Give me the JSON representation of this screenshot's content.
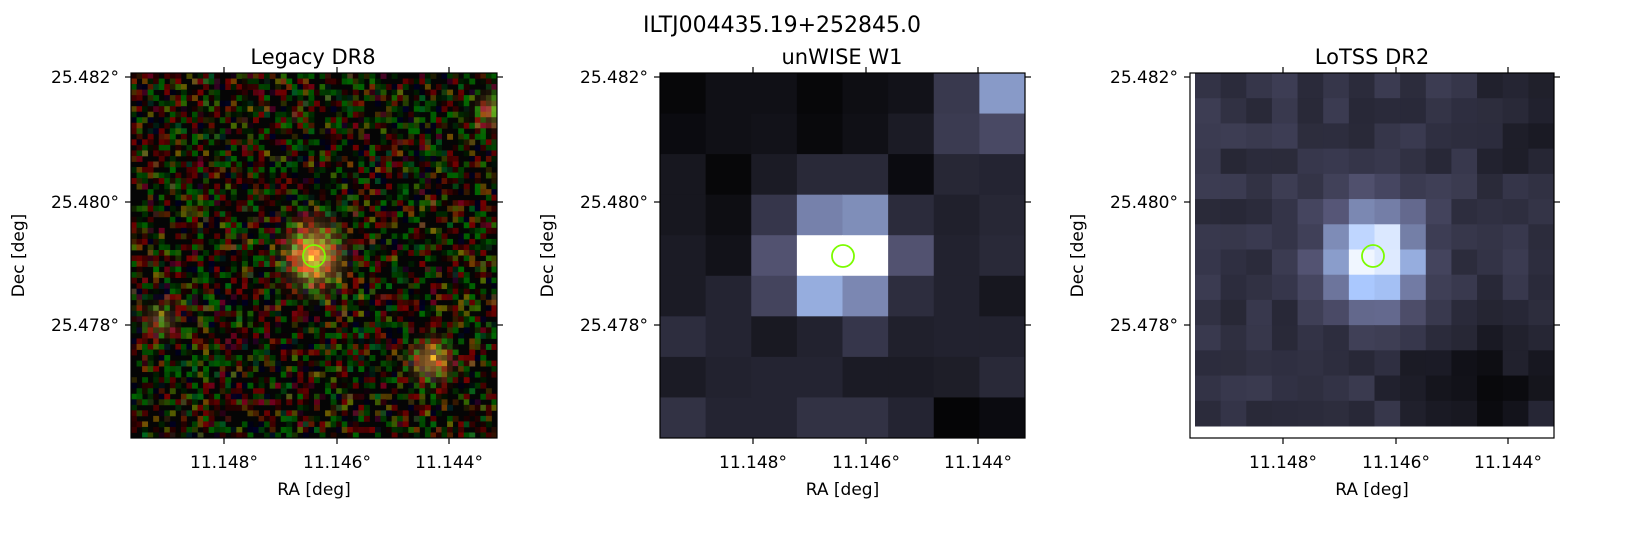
{
  "figure": {
    "title": "ILTJ004435.19+252845.0",
    "marker_color": "#7cfc00"
  },
  "panels": [
    {
      "title": "Legacy DR8",
      "xlabel": "RA [deg]",
      "ylabel": "Dec [deg]",
      "x_ticks": [
        "11.148°",
        "11.146°",
        "11.144°"
      ],
      "y_ticks": [
        "25.482°",
        "25.480°",
        "25.478°"
      ],
      "style": "rgb-noise"
    },
    {
      "title": "unWISE W1",
      "xlabel": "RA [deg]",
      "ylabel": "Dec [deg]",
      "x_ticks": [
        "11.148°",
        "11.146°",
        "11.144°"
      ],
      "y_ticks": [
        "25.482°",
        "25.480°",
        "25.478°"
      ],
      "style": "mono-coarse"
    },
    {
      "title": "LoTSS DR2",
      "xlabel": "RA [deg]",
      "ylabel": "Dec [deg]",
      "x_ticks": [
        "11.148°",
        "11.146°",
        "11.144°"
      ],
      "y_ticks": [
        "25.482°",
        "25.480°",
        "25.478°"
      ],
      "style": "mono-fine"
    }
  ]
}
